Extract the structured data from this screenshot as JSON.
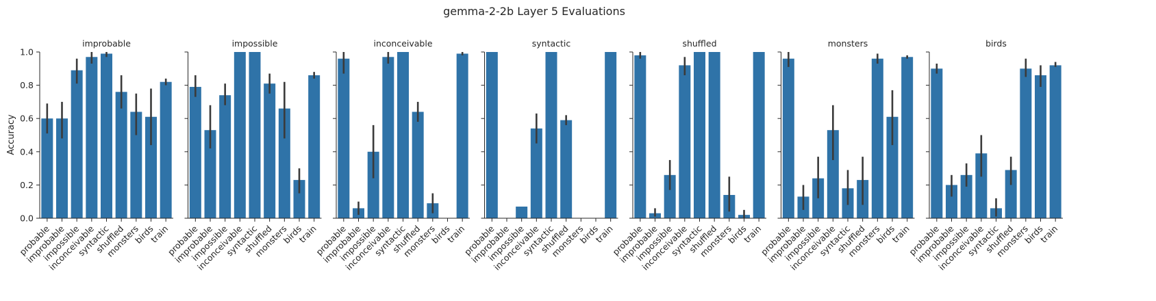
{
  "figure": {
    "title": "gemma-2-2b Layer 5 Evaluations",
    "ylabel": "Accuracy",
    "ytick_labels": [
      "0.0",
      "0.2",
      "0.4",
      "0.6",
      "0.8",
      "1.0"
    ]
  },
  "colors": {
    "bar": "#2f73a8",
    "error_bar": "#3a3a3a",
    "axis": "#262626"
  },
  "chart_data": [
    {
      "type": "bar",
      "title": "improbable",
      "ylabel": "Accuracy",
      "ylim": [
        0,
        1.0
      ],
      "categories": [
        "probable",
        "improbable",
        "impossible",
        "inconceivable",
        "syntactic",
        "shuffled",
        "monsters",
        "birds",
        "train"
      ],
      "values": [
        0.6,
        0.6,
        0.89,
        0.97,
        0.99,
        0.76,
        0.64,
        0.61,
        0.82
      ],
      "error_low": [
        0.51,
        0.48,
        0.81,
        0.93,
        0.97,
        0.66,
        0.5,
        0.44,
        0.8
      ],
      "error_high": [
        0.69,
        0.7,
        0.96,
        1.0,
        1.0,
        0.86,
        0.75,
        0.78,
        0.84
      ]
    },
    {
      "type": "bar",
      "title": "impossible",
      "ylim": [
        0,
        1.0
      ],
      "categories": [
        "probable",
        "improbable",
        "impossible",
        "inconceivable",
        "syntactic",
        "shuffled",
        "monsters",
        "birds",
        "train"
      ],
      "values": [
        0.79,
        0.53,
        0.74,
        1.0,
        1.0,
        0.81,
        0.66,
        0.23,
        0.86
      ],
      "error_low": [
        0.73,
        0.42,
        0.68,
        1.0,
        1.0,
        0.75,
        0.48,
        0.15,
        0.84
      ],
      "error_high": [
        0.86,
        0.68,
        0.81,
        1.0,
        1.0,
        0.87,
        0.82,
        0.3,
        0.88
      ]
    },
    {
      "type": "bar",
      "title": "inconceivable",
      "ylim": [
        0,
        1.0
      ],
      "categories": [
        "probable",
        "improbable",
        "impossible",
        "inconceivable",
        "syntactic",
        "shuffled",
        "monsters",
        "birds",
        "train"
      ],
      "values": [
        0.96,
        0.06,
        0.4,
        0.97,
        1.0,
        0.64,
        0.09,
        0.0,
        0.99
      ],
      "error_low": [
        0.87,
        0.02,
        0.24,
        0.93,
        1.0,
        0.58,
        0.03,
        0.0,
        0.98
      ],
      "error_high": [
        1.0,
        0.1,
        0.56,
        1.0,
        1.0,
        0.7,
        0.15,
        0.0,
        1.0
      ]
    },
    {
      "type": "bar",
      "title": "syntactic",
      "ylim": [
        0,
        1.0
      ],
      "categories": [
        "probable",
        "improbable",
        "impossible",
        "inconceivable",
        "syntactic",
        "shuffled",
        "monsters",
        "birds",
        "train"
      ],
      "values": [
        1.0,
        0.0,
        0.07,
        0.54,
        1.0,
        0.59,
        0.0,
        0.0,
        1.0
      ],
      "error_low": [
        1.0,
        0.0,
        0.07,
        0.45,
        1.0,
        0.56,
        0.0,
        0.0,
        1.0
      ],
      "error_high": [
        1.0,
        0.0,
        0.07,
        0.63,
        1.0,
        0.62,
        0.0,
        0.0,
        1.0
      ]
    },
    {
      "type": "bar",
      "title": "shuffled",
      "ylim": [
        0,
        1.0
      ],
      "categories": [
        "probable",
        "improbable",
        "impossible",
        "inconceivable",
        "syntactic",
        "shuffled",
        "monsters",
        "birds",
        "train"
      ],
      "values": [
        0.98,
        0.03,
        0.26,
        0.92,
        1.0,
        1.0,
        0.14,
        0.02,
        1.0
      ],
      "error_low": [
        0.96,
        0.01,
        0.17,
        0.86,
        1.0,
        1.0,
        0.04,
        0.0,
        1.0
      ],
      "error_high": [
        1.0,
        0.06,
        0.35,
        0.97,
        1.0,
        1.0,
        0.25,
        0.05,
        1.0
      ]
    },
    {
      "type": "bar",
      "title": "monsters",
      "ylim": [
        0,
        1.0
      ],
      "categories": [
        "probable",
        "improbable",
        "impossible",
        "inconceivable",
        "syntactic",
        "shuffled",
        "monsters",
        "birds",
        "train"
      ],
      "values": [
        0.96,
        0.13,
        0.24,
        0.53,
        0.18,
        0.23,
        0.96,
        0.61,
        0.97
      ],
      "error_low": [
        0.91,
        0.05,
        0.12,
        0.35,
        0.08,
        0.08,
        0.93,
        0.44,
        0.96
      ],
      "error_high": [
        1.0,
        0.2,
        0.37,
        0.68,
        0.29,
        0.37,
        0.99,
        0.77,
        0.98
      ]
    },
    {
      "type": "bar",
      "title": "birds",
      "ylim": [
        0,
        1.0
      ],
      "categories": [
        "probable",
        "improbable",
        "impossible",
        "inconceivable",
        "syntactic",
        "shuffled",
        "monsters",
        "birds",
        "train"
      ],
      "values": [
        0.9,
        0.2,
        0.26,
        0.39,
        0.06,
        0.29,
        0.9,
        0.86,
        0.92
      ],
      "error_low": [
        0.87,
        0.13,
        0.19,
        0.25,
        0.01,
        0.2,
        0.85,
        0.79,
        0.91
      ],
      "error_high": [
        0.93,
        0.26,
        0.33,
        0.5,
        0.12,
        0.37,
        0.96,
        0.92,
        0.94
      ]
    }
  ]
}
